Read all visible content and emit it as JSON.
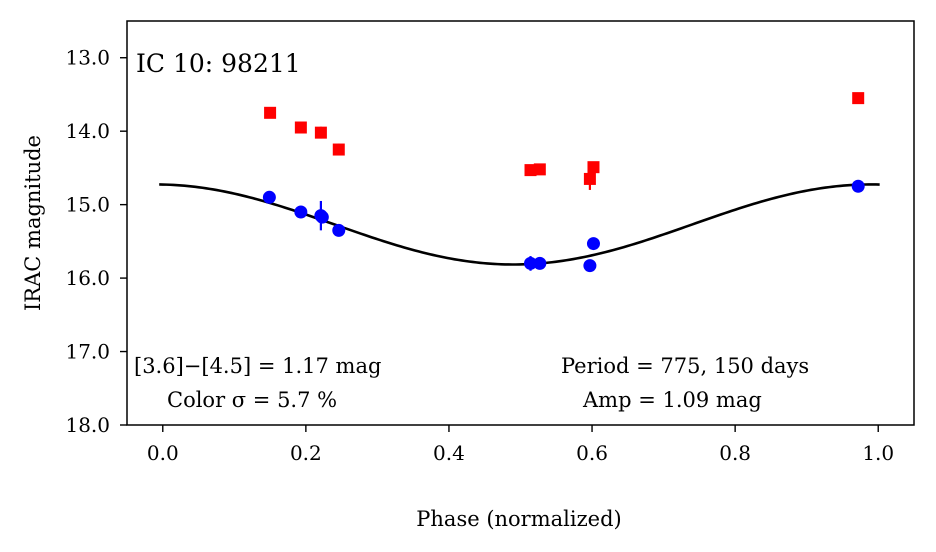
{
  "chart_data": {
    "type": "scatter",
    "title": "IC 10:  98211",
    "xlabel": "Phase (normalized)",
    "ylabel": "IRAC magnitude",
    "xlim": [
      -0.05,
      1.05
    ],
    "ylim": [
      18.0,
      12.5
    ],
    "y_inverted": true,
    "xticks": [
      0.0,
      0.2,
      0.4,
      0.6,
      0.8,
      1.0
    ],
    "xtick_labels": [
      "0.0",
      "0.2",
      "0.4",
      "0.6",
      "0.8",
      "1.0"
    ],
    "yticks": [
      13.0,
      14.0,
      15.0,
      16.0,
      17.0,
      18.0
    ],
    "ytick_labels": [
      "13.0",
      "14.0",
      "15.0",
      "16.0",
      "17.0",
      "18.0"
    ],
    "grid": false,
    "series": [
      {
        "marker": "square",
        "color": "#ff0000",
        "points": [
          {
            "x": 0.15,
            "y": 13.75,
            "err": 0.03
          },
          {
            "x": 0.193,
            "y": 13.95,
            "err": 0.03
          },
          {
            "x": 0.221,
            "y": 14.02,
            "err": 0.08
          },
          {
            "x": 0.246,
            "y": 14.25,
            "err": 0.08
          },
          {
            "x": 0.514,
            "y": 14.53,
            "err": 0.03
          },
          {
            "x": 0.527,
            "y": 14.52,
            "err": 0.03
          },
          {
            "x": 0.597,
            "y": 14.65,
            "err": 0.15
          },
          {
            "x": 0.602,
            "y": 14.49,
            "err": 0.05
          },
          {
            "x": 0.972,
            "y": 13.55,
            "err": 0.03
          }
        ]
      },
      {
        "marker": "circle",
        "color": "#0000ff",
        "points": [
          {
            "x": 0.149,
            "y": 14.9,
            "err": 0.03
          },
          {
            "x": 0.193,
            "y": 15.1,
            "err": 0.04
          },
          {
            "x": 0.221,
            "y": 15.15,
            "err": 0.2
          },
          {
            "x": 0.223,
            "y": 15.17,
            "err": 0.05
          },
          {
            "x": 0.246,
            "y": 15.35,
            "err": 0.08
          },
          {
            "x": 0.514,
            "y": 15.8,
            "err": 0.1
          },
          {
            "x": 0.527,
            "y": 15.8,
            "err": 0.04
          },
          {
            "x": 0.597,
            "y": 15.83,
            "err": 0.04
          },
          {
            "x": 0.602,
            "y": 15.53,
            "err": 0.05
          },
          {
            "x": 0.972,
            "y": 14.75,
            "err": 0.03
          }
        ]
      }
    ],
    "fit": {
      "type": "sinusoid",
      "color": "#000000",
      "x_range": [
        -0.005,
        1.002
      ],
      "mean": 15.27,
      "amplitude": 0.545,
      "phase_of_max_brightness": 0.99
    },
    "annotations": {
      "color_line": "[3.6]−[4.5] = 1.17 mag",
      "sigma_line": "Color σ = 5.7 %",
      "period_line": "Period = 775, 150 days",
      "amp_line": "Amp = 1.09 mag"
    }
  }
}
